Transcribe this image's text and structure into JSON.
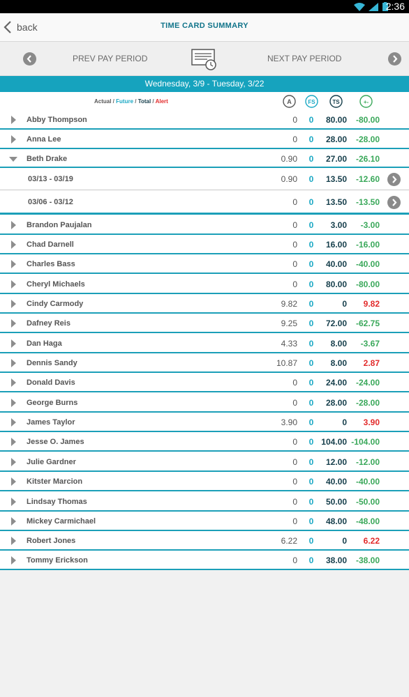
{
  "status_bar": {
    "time": "2:36"
  },
  "header": {
    "back_label": "back",
    "title": "TIME CARD SUMMARY"
  },
  "period_nav": {
    "prev_label": "PREV PAY PERIOD",
    "next_label": "NEXT PAY PERIOD"
  },
  "date_range": "Wednesday, 3/9 - Tuesday, 3/22",
  "legend": {
    "actual": "Actual",
    "future": "Future",
    "total": "Total",
    "alert": "Alert",
    "sep": " / "
  },
  "columns": {
    "a": "A",
    "fs": "FS",
    "ts": "TS",
    "diff": "+-"
  },
  "colors": {
    "accent": "#16a3be",
    "positive": "#3aa85a",
    "alert": "#e22a2a",
    "total": "#153e4b"
  },
  "rows": [
    {
      "name": "Abby Thompson",
      "a": "0",
      "fs": "0",
      "ts": "80.00",
      "diff": "-80.00",
      "alert": false
    },
    {
      "name": "Anna Lee",
      "a": "0",
      "fs": "0",
      "ts": "28.00",
      "diff": "-28.00",
      "alert": false
    },
    {
      "name": "Beth Drake",
      "a": "0.90",
      "fs": "0",
      "ts": "27.00",
      "diff": "-26.10",
      "alert": false,
      "expanded": true
    },
    {
      "name": "Brandon Paujalan",
      "a": "0",
      "fs": "0",
      "ts": "3.00",
      "diff": "-3.00",
      "alert": false
    },
    {
      "name": "Chad Darnell",
      "a": "0",
      "fs": "0",
      "ts": "16.00",
      "diff": "-16.00",
      "alert": false
    },
    {
      "name": "Charles Bass",
      "a": "0",
      "fs": "0",
      "ts": "40.00",
      "diff": "-40.00",
      "alert": false
    },
    {
      "name": "Cheryl Michaels",
      "a": "0",
      "fs": "0",
      "ts": "80.00",
      "diff": "-80.00",
      "alert": false
    },
    {
      "name": "Cindy Carmody",
      "a": "9.82",
      "fs": "0",
      "ts": "0",
      "diff": "9.82",
      "alert": true
    },
    {
      "name": "Dafney Reis",
      "a": "9.25",
      "fs": "0",
      "ts": "72.00",
      "diff": "-62.75",
      "alert": false
    },
    {
      "name": "Dan Haga",
      "a": "4.33",
      "fs": "0",
      "ts": "8.00",
      "diff": "-3.67",
      "alert": false
    },
    {
      "name": "Dennis Sandy",
      "a": "10.87",
      "fs": "0",
      "ts": "8.00",
      "diff": "2.87",
      "alert": true
    },
    {
      "name": "Donald Davis",
      "a": "0",
      "fs": "0",
      "ts": "24.00",
      "diff": "-24.00",
      "alert": false
    },
    {
      "name": "George Burns",
      "a": "0",
      "fs": "0",
      "ts": "28.00",
      "diff": "-28.00",
      "alert": false
    },
    {
      "name": "James Taylor",
      "a": "3.90",
      "fs": "0",
      "ts": "0",
      "diff": "3.90",
      "alert": true
    },
    {
      "name": "Jesse O. James",
      "a": "0",
      "fs": "0",
      "ts": "104.00",
      "diff": "-104.00",
      "alert": false
    },
    {
      "name": "Julie Gardner",
      "a": "0",
      "fs": "0",
      "ts": "12.00",
      "diff": "-12.00",
      "alert": false
    },
    {
      "name": "Kitster Marcion",
      "a": "0",
      "fs": "0",
      "ts": "40.00",
      "diff": "-40.00",
      "alert": false
    },
    {
      "name": "Lindsay Thomas",
      "a": "0",
      "fs": "0",
      "ts": "50.00",
      "diff": "-50.00",
      "alert": false
    },
    {
      "name": "Mickey Carmichael",
      "a": "0",
      "fs": "0",
      "ts": "48.00",
      "diff": "-48.00",
      "alert": false
    },
    {
      "name": "Robert Jones",
      "a": "6.22",
      "fs": "0",
      "ts": "0",
      "diff": "6.22",
      "alert": true
    },
    {
      "name": "Tommy Erickson",
      "a": "0",
      "fs": "0",
      "ts": "38.00",
      "diff": "-38.00",
      "alert": false
    }
  ],
  "sub_rows": [
    {
      "period": "03/13 - 03/19",
      "a": "0.90",
      "fs": "0",
      "ts": "13.50",
      "diff": "-12.60"
    },
    {
      "period": "03/06 - 03/12",
      "a": "0",
      "fs": "0",
      "ts": "13.50",
      "diff": "-13.50"
    }
  ]
}
